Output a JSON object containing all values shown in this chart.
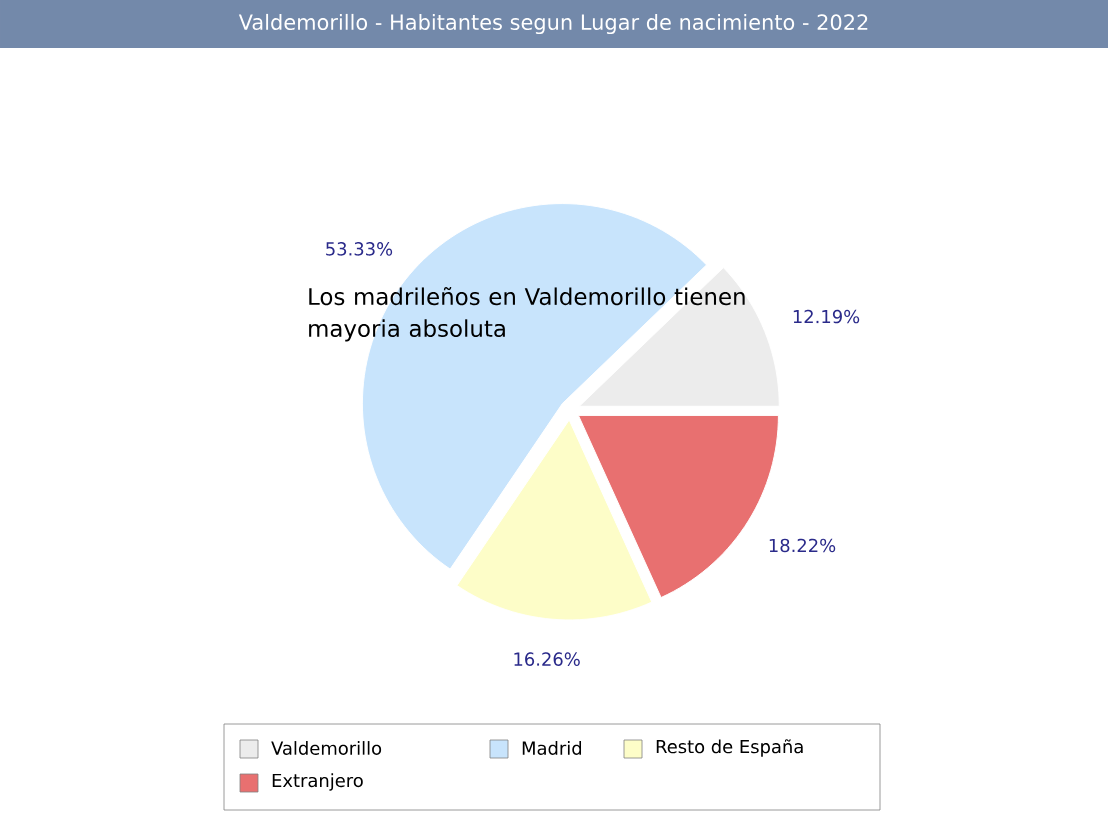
{
  "chart_data": {
    "type": "pie",
    "title": "Valdemorillo - Habitantes segun Lugar de nacimiento - 2022",
    "categories": [
      "Valdemorillo",
      "Madrid",
      "Resto de España",
      "Extranjero"
    ],
    "values": [
      12.19,
      53.33,
      16.26,
      18.22
    ],
    "value_labels": [
      "12.19%",
      "53.33%",
      "16.26%",
      "18.22%"
    ],
    "colors": [
      "#ececec",
      "#c8e4fc",
      "#fdfdc8",
      "#e87070"
    ],
    "annotations": [
      "Los madrileños en Valdemorillo tienen mayoria absoluta"
    ],
    "legend": "bottom"
  }
}
